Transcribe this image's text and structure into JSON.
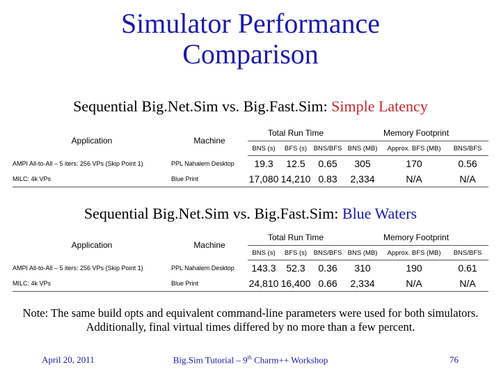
{
  "title": {
    "line1": "Simulator Performance",
    "line2": "Comparison"
  },
  "section1": {
    "prefix": "Sequential Big.Net.Sim vs. Big.Fast.Sim: ",
    "highlight": "Simple Latency",
    "highlight_color": "#c0282d"
  },
  "section2": {
    "prefix": "Sequential Big.Net.Sim vs. Big.Fast.Sim: ",
    "highlight": "Blue Waters",
    "highlight_color": "#1a1aa6"
  },
  "table_headers": {
    "application": "Application",
    "machine": "Machine",
    "total_run_time": "Total Run Time",
    "memory_footprint": "Memory Footprint",
    "bns_s": "BNS (s)",
    "bfs_s": "BFS (s)",
    "bns_bfs": "BNS/BFS",
    "bns_mb": "BNS (MB)",
    "approx_bfs_mb": "Approx. BFS (MB)",
    "bns_bfs2": "BNS/BFS"
  },
  "table1": {
    "rows": [
      {
        "application": "AMPI All-to-All – 5 iters: 256 VPs (Skip Point 1)",
        "machine": "PPL Nahalem Desktop",
        "bns_s": "19.3",
        "bfs_s": "12.5",
        "ratio_t": "0.65",
        "bns_mb": "305",
        "bfs_mb": "170",
        "ratio_m": "0.56"
      },
      {
        "application": "MILC: 4k VPs",
        "machine": "Blue Print",
        "bns_s": "17,080",
        "bfs_s": "14,210",
        "ratio_t": "0.83",
        "bns_mb": "2,334",
        "bfs_mb": "N/A",
        "ratio_m": "N/A"
      }
    ]
  },
  "table2": {
    "rows": [
      {
        "application": "AMPI All-to-All – 5 iters: 256 VPs (Skip Point 1)",
        "machine": "PPL Nahalem Desktop",
        "bns_s": "143.3",
        "bfs_s": "52.3",
        "ratio_t": "0.36",
        "bns_mb": "310",
        "bfs_mb": "190",
        "ratio_m": "0.61"
      },
      {
        "application": "MILC: 4k VPs",
        "machine": "Blue Print",
        "bns_s": "24,810",
        "bfs_s": "16,400",
        "ratio_t": "0.66",
        "bns_mb": "2,334",
        "bfs_mb": "N/A",
        "ratio_m": "N/A"
      }
    ]
  },
  "note": {
    "line1": "Note: The same build opts and equivalent command-line parameters were used for both simulators.",
    "line2": "Additionally, final virtual times differed by no more than a few percent."
  },
  "footer": {
    "date": "April 20, 2011",
    "center_before": "Big.Sim Tutorial – 9",
    "center_sup": "th",
    "center_after": " Charm++ Workshop",
    "page": "76"
  },
  "colors": {
    "title": "#1a1aa6",
    "accent_red": "#c0282d"
  }
}
